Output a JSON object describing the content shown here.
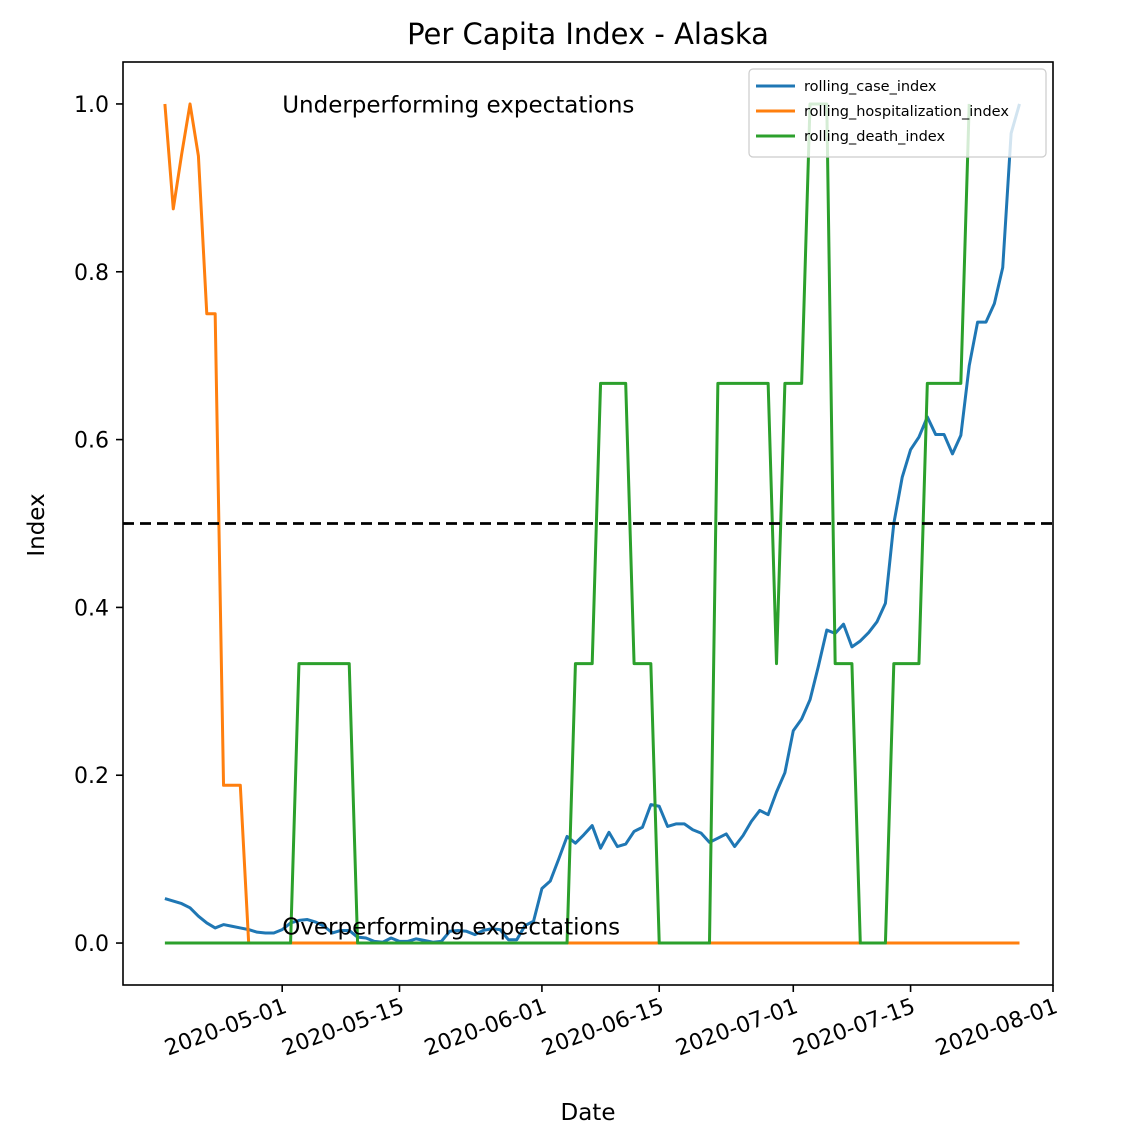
{
  "chart_data": {
    "type": "line",
    "title": "Per Capita Index - Alaska",
    "xlabel": "Date",
    "ylabel": "Index",
    "ylim": [
      -0.05,
      1.05
    ],
    "xlim": [
      "2020-04-12",
      "2020-08-01"
    ],
    "x_ticks": [
      "2020-05-01",
      "2020-05-15",
      "2020-06-01",
      "2020-06-15",
      "2020-07-01",
      "2020-07-15",
      "2020-08-01"
    ],
    "y_ticks": [
      "0.0",
      "0.2",
      "0.4",
      "0.6",
      "0.8",
      "1.0"
    ],
    "grid": false,
    "legend_position": "top-right",
    "reference_line": {
      "y": 0.5,
      "style": "dashed",
      "color": "#000000"
    },
    "annotations": [
      {
        "text": "Underperforming expectations",
        "x": "2020-05-01",
        "y": 0.99
      },
      {
        "text": "Overperforming expectations",
        "x": "2020-05-01",
        "y": 0.01
      }
    ],
    "series": [
      {
        "name": "rolling_case_index",
        "color": "#1f77b4",
        "points": [
          [
            "2020-04-17",
            0.053
          ],
          [
            "2020-04-18",
            0.05
          ],
          [
            "2020-04-19",
            0.047
          ],
          [
            "2020-04-20",
            0.042
          ],
          [
            "2020-04-21",
            0.032
          ],
          [
            "2020-04-22",
            0.024
          ],
          [
            "2020-04-23",
            0.018
          ],
          [
            "2020-04-24",
            0.022
          ],
          [
            "2020-04-25",
            0.02
          ],
          [
            "2020-04-26",
            0.018
          ],
          [
            "2020-04-27",
            0.016
          ],
          [
            "2020-04-28",
            0.013
          ],
          [
            "2020-04-29",
            0.012
          ],
          [
            "2020-04-30",
            0.012
          ],
          [
            "2020-05-01",
            0.016
          ],
          [
            "2020-05-02",
            0.024
          ],
          [
            "2020-05-03",
            0.027
          ],
          [
            "2020-05-04",
            0.028
          ],
          [
            "2020-05-05",
            0.025
          ],
          [
            "2020-05-06",
            0.02
          ],
          [
            "2020-05-07",
            0.012
          ],
          [
            "2020-05-08",
            0.015
          ],
          [
            "2020-05-09",
            0.015
          ],
          [
            "2020-05-10",
            0.007
          ],
          [
            "2020-05-11",
            0.006
          ],
          [
            "2020-05-12",
            0.002
          ],
          [
            "2020-05-13",
            0.001
          ],
          [
            "2020-05-14",
            0.006
          ],
          [
            "2020-05-15",
            0.002
          ],
          [
            "2020-05-16",
            0.002
          ],
          [
            "2020-05-17",
            0.005
          ],
          [
            "2020-05-18",
            0.003
          ],
          [
            "2020-05-19",
            0.001
          ],
          [
            "2020-05-20",
            0.002
          ],
          [
            "2020-05-21",
            0.014
          ],
          [
            "2020-05-22",
            0.015
          ],
          [
            "2020-05-23",
            0.014
          ],
          [
            "2020-05-24",
            0.01
          ],
          [
            "2020-05-25",
            0.015
          ],
          [
            "2020-05-26",
            0.017
          ],
          [
            "2020-05-27",
            0.016
          ],
          [
            "2020-05-28",
            0.004
          ],
          [
            "2020-05-29",
            0.004
          ],
          [
            "2020-05-30",
            0.021
          ],
          [
            "2020-05-31",
            0.026
          ],
          [
            "2020-06-01",
            0.065
          ],
          [
            "2020-06-02",
            0.074
          ],
          [
            "2020-06-03",
            0.1
          ],
          [
            "2020-06-04",
            0.127
          ],
          [
            "2020-06-05",
            0.119
          ],
          [
            "2020-06-06",
            0.129
          ],
          [
            "2020-06-07",
            0.14
          ],
          [
            "2020-06-08",
            0.113
          ],
          [
            "2020-06-09",
            0.132
          ],
          [
            "2020-06-10",
            0.115
          ],
          [
            "2020-06-11",
            0.118
          ],
          [
            "2020-06-12",
            0.133
          ],
          [
            "2020-06-13",
            0.138
          ],
          [
            "2020-06-14",
            0.165
          ],
          [
            "2020-06-15",
            0.163
          ],
          [
            "2020-06-16",
            0.139
          ],
          [
            "2020-06-17",
            0.142
          ],
          [
            "2020-06-18",
            0.142
          ],
          [
            "2020-06-19",
            0.135
          ],
          [
            "2020-06-20",
            0.131
          ],
          [
            "2020-06-21",
            0.12
          ],
          [
            "2020-06-22",
            0.125
          ],
          [
            "2020-06-23",
            0.13
          ],
          [
            "2020-06-24",
            0.115
          ],
          [
            "2020-06-25",
            0.128
          ],
          [
            "2020-06-26",
            0.145
          ],
          [
            "2020-06-27",
            0.158
          ],
          [
            "2020-06-28",
            0.153
          ],
          [
            "2020-06-29",
            0.18
          ],
          [
            "2020-06-30",
            0.203
          ],
          [
            "2020-07-01",
            0.253
          ],
          [
            "2020-07-02",
            0.267
          ],
          [
            "2020-07-03",
            0.29
          ],
          [
            "2020-07-04",
            0.33
          ],
          [
            "2020-07-05",
            0.373
          ],
          [
            "2020-07-06",
            0.369
          ],
          [
            "2020-07-07",
            0.38
          ],
          [
            "2020-07-08",
            0.353
          ],
          [
            "2020-07-09",
            0.36
          ],
          [
            "2020-07-10",
            0.37
          ],
          [
            "2020-07-11",
            0.383
          ],
          [
            "2020-07-12",
            0.405
          ],
          [
            "2020-07-13",
            0.5
          ],
          [
            "2020-07-14",
            0.555
          ],
          [
            "2020-07-15",
            0.588
          ],
          [
            "2020-07-16",
            0.603
          ],
          [
            "2020-07-17",
            0.627
          ],
          [
            "2020-07-18",
            0.606
          ],
          [
            "2020-07-19",
            0.606
          ],
          [
            "2020-07-20",
            0.583
          ],
          [
            "2020-07-21",
            0.605
          ],
          [
            "2020-07-22",
            0.688
          ],
          [
            "2020-07-23",
            0.74
          ],
          [
            "2020-07-24",
            0.74
          ],
          [
            "2020-07-25",
            0.762
          ],
          [
            "2020-07-26",
            0.805
          ],
          [
            "2020-07-27",
            0.965
          ],
          [
            "2020-07-28",
            1.0
          ]
        ]
      },
      {
        "name": "rolling_hospitalization_index",
        "color": "#ff7f0e",
        "points": [
          [
            "2020-04-17",
            1.0
          ],
          [
            "2020-04-18",
            0.875
          ],
          [
            "2020-04-19",
            0.94
          ],
          [
            "2020-04-20",
            1.0
          ],
          [
            "2020-04-21",
            0.938
          ],
          [
            "2020-04-22",
            0.75
          ],
          [
            "2020-04-23",
            0.75
          ],
          [
            "2020-04-24",
            0.188
          ],
          [
            "2020-04-25",
            0.188
          ],
          [
            "2020-04-26",
            0.188
          ],
          [
            "2020-04-27",
            0.0
          ],
          [
            "2020-07-28",
            0.0
          ]
        ]
      },
      {
        "name": "rolling_death_index",
        "color": "#2ca02c",
        "points": [
          [
            "2020-04-17",
            0.0
          ],
          [
            "2020-05-02",
            0.0
          ],
          [
            "2020-05-03",
            0.333
          ],
          [
            "2020-05-09",
            0.333
          ],
          [
            "2020-05-10",
            0.0
          ],
          [
            "2020-06-04",
            0.0
          ],
          [
            "2020-06-05",
            0.333
          ],
          [
            "2020-06-07",
            0.333
          ],
          [
            "2020-06-08",
            0.667
          ],
          [
            "2020-06-11",
            0.667
          ],
          [
            "2020-06-12",
            0.333
          ],
          [
            "2020-06-14",
            0.333
          ],
          [
            "2020-06-15",
            0.0
          ],
          [
            "2020-06-21",
            0.0
          ],
          [
            "2020-06-22",
            0.667
          ],
          [
            "2020-06-28",
            0.667
          ],
          [
            "2020-06-29",
            0.333
          ],
          [
            "2020-06-30",
            0.667
          ],
          [
            "2020-07-02",
            0.667
          ],
          [
            "2020-07-03",
            1.0
          ],
          [
            "2020-07-05",
            1.0
          ],
          [
            "2020-07-06",
            0.333
          ],
          [
            "2020-07-08",
            0.333
          ],
          [
            "2020-07-09",
            0.0
          ],
          [
            "2020-07-12",
            0.0
          ],
          [
            "2020-07-13",
            0.333
          ],
          [
            "2020-07-16",
            0.333
          ],
          [
            "2020-07-17",
            0.667
          ],
          [
            "2020-07-21",
            0.667
          ],
          [
            "2020-07-22",
            1.0
          ]
        ]
      }
    ]
  }
}
